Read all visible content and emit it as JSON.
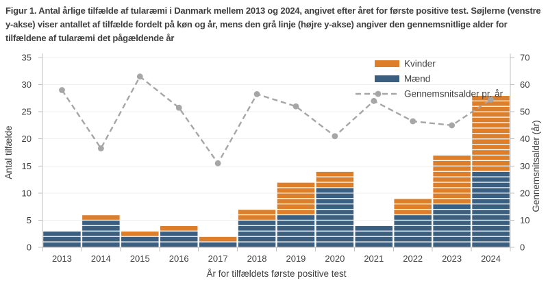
{
  "figure_title": "Figur 1. Antal årlige tilfælde af tularæmi i Danmark mellem 2013 og 2024, angivet efter året for første positive test. Søjlerne (venstre y-akse) viser antallet af tilfælde fordelt på køn og år, mens den grå linje (højre y-akse) angiver den gennemsnitlige alder for tilfældene af tularæmi det pågældende år",
  "colors": {
    "kvinder_orange": "#DD7E2B",
    "maend_blue": "#3A5F81",
    "line_gray": "#A6A6A6",
    "axis_line": "#BFBFBF",
    "gridline": "#EFEFEF",
    "text": "#404040",
    "title_text": "#3F3F3F",
    "background": "#FFFFFF"
  },
  "chart_data": {
    "type": "bar",
    "subtype": "stacked-bar-with-line",
    "categories": [
      "2013",
      "2014",
      "2015",
      "2016",
      "2017",
      "2018",
      "2019",
      "2020",
      "2021",
      "2022",
      "2023",
      "2024"
    ],
    "bar_series": [
      {
        "name": "Mænd",
        "color": "#3A5F81",
        "values": [
          3,
          5,
          2,
          3,
          1,
          5,
          6,
          11,
          4,
          6,
          8,
          14
        ]
      },
      {
        "name": "Kvinder",
        "color": "#DD7E2B",
        "values": [
          0,
          1,
          1,
          1,
          1,
          2,
          6,
          3,
          0,
          3,
          9,
          14
        ]
      }
    ],
    "line_series": {
      "name": "Gennemsnitsalder pr. år",
      "color": "#A6A6A6",
      "axis": "right",
      "values": [
        58,
        36.5,
        63,
        51.5,
        31,
        56.5,
        52,
        41,
        54,
        46.5,
        45,
        54.5
      ]
    },
    "left_axis": {
      "label": "Antal tilfælde",
      "min": 0,
      "max": 35,
      "tick_step": 5
    },
    "right_axis": {
      "label": "Gennemsnitsalder  (år)",
      "min": 0,
      "max": 70,
      "tick_step": 10
    },
    "x_axis": {
      "label": "År for tilfældets første positive test"
    },
    "legend": {
      "position": "top-right",
      "items": [
        "Kvinder",
        "Mænd",
        "Gennemsnitsalder pr. år"
      ]
    },
    "grid": true
  }
}
